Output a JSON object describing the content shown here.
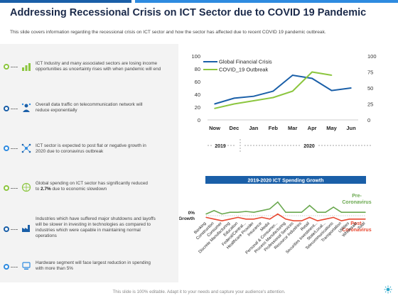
{
  "slide": {
    "title": "Addressing Recessional Crisis on ICT Sector due to COVID 19 Pandemic",
    "subtitle": "This slide covers information regarding the recessional crisis on ICT  sector and how the sector has affected due to recent COVID 19 pandemic outbreak.",
    "footer": "This slide is 100% editable. Adapt it to your needs and capture your audience's attention.",
    "accent_color": "#1a5fa8",
    "colors": {
      "primary_blue": "#1a5fa8",
      "light_blue": "#2e8be0",
      "green": "#8cc63f",
      "orange": "#e8472f",
      "dark_green": "#6aa84f"
    }
  },
  "items": [
    {
      "icon": "chart-bars-icon",
      "color": "#8cc63f",
      "lines": [
        "ICT Industry and many associated sectors are losing income",
        "opportunities as uncertainty rises with when pandemic will end"
      ]
    },
    {
      "icon": "network-person-icon",
      "color": "#1a5fa8",
      "lines": [
        "Overall data traffic on telecommunication network will",
        "reduce exponentially"
      ]
    },
    {
      "icon": "ict-network-icon",
      "color": "#2e8be0",
      "lines": [
        "ICT sector is expected to post flat or negative growth in",
        "2020 due to coronavirus outbreak"
      ]
    },
    {
      "icon": "globe-money-icon",
      "color": "#8cc63f",
      "lines_rich": [
        [
          "Global spending on ICT sector has significantly reduced"
        ],
        [
          "to ",
          "2.7%",
          " due to economic slowdown"
        ]
      ]
    },
    {
      "icon": "factory-icon",
      "color": "#1a5fa8",
      "lines": [
        "Industries which have suffered major shutdowns and layoffs",
        "will be slower in investing in technologies as compared to",
        "industries which were capable in maintaining normal",
        "operations"
      ]
    },
    {
      "icon": "hardware-icon",
      "color": "#2e8be0",
      "lines": [
        "Hardware segment will face largest reduction in spending",
        "with more than 5%"
      ]
    }
  ],
  "chart_data": [
    {
      "type": "line",
      "categories": [
        "Now",
        "Dec",
        "Jan",
        "Feb",
        "Mar",
        "Apr",
        "May",
        "Jun"
      ],
      "year_labels": [
        "2019",
        "2020"
      ],
      "y_left": {
        "lim": [
          0,
          100
        ],
        "ticks": [
          0,
          20,
          40,
          60,
          80,
          100
        ]
      },
      "y_right": {
        "lim": [
          0,
          100
        ],
        "ticks": [
          0,
          25,
          50,
          75,
          100
        ]
      },
      "series": [
        {
          "name": "Global Financial Crisis",
          "color": "#1a5fa8",
          "axis": "left",
          "values": [
            25,
            34,
            37,
            45,
            70,
            65,
            46,
            50
          ]
        },
        {
          "name": "COVID_19 Outbreak",
          "color": "#8cc63f",
          "axis": "right",
          "values": [
            18,
            25,
            30,
            35,
            45,
            75,
            70,
            null
          ]
        }
      ]
    },
    {
      "type": "line",
      "title": "2019-2020 ICT Spending Growth",
      "zero_label": [
        "0%",
        "Growth"
      ],
      "categories": [
        "Banking",
        "Construction",
        "Consumer",
        "Discrete Manufacturing",
        "Education",
        "Federal/Central...",
        "Healthcare Provider",
        "Insurance",
        "Media",
        "Personal & Consumer...",
        "Process Manufacturing",
        "Professional Services",
        "Resource Industries",
        "Retail",
        "Securities Investment...",
        "State/Local...",
        "Telecommunications",
        "Transportation",
        "Utilities",
        "Wholesale",
        "Total"
      ],
      "series": [
        {
          "name": "Pre-Coronavirus",
          "label_lines": [
            "Pre-",
            "Coronavirus"
          ],
          "color": "#6aa84f",
          "values": [
            1,
            3,
            1,
            2,
            2,
            2.5,
            2,
            3,
            4,
            8,
            2,
            2,
            2,
            6,
            2,
            2,
            5,
            2,
            2,
            2,
            2
          ]
        },
        {
          "name": "Post-Coronavirus",
          "label_lines": [
            "Post-",
            "Coronavirus"
          ],
          "color": "#e8472f",
          "values": [
            -1,
            -2,
            -3,
            -2,
            -1,
            -2,
            -2,
            -1,
            -2,
            1,
            -2,
            -3,
            -3,
            -1,
            -3,
            -2,
            -1,
            -3,
            -2,
            -2,
            -2
          ]
        }
      ]
    }
  ]
}
